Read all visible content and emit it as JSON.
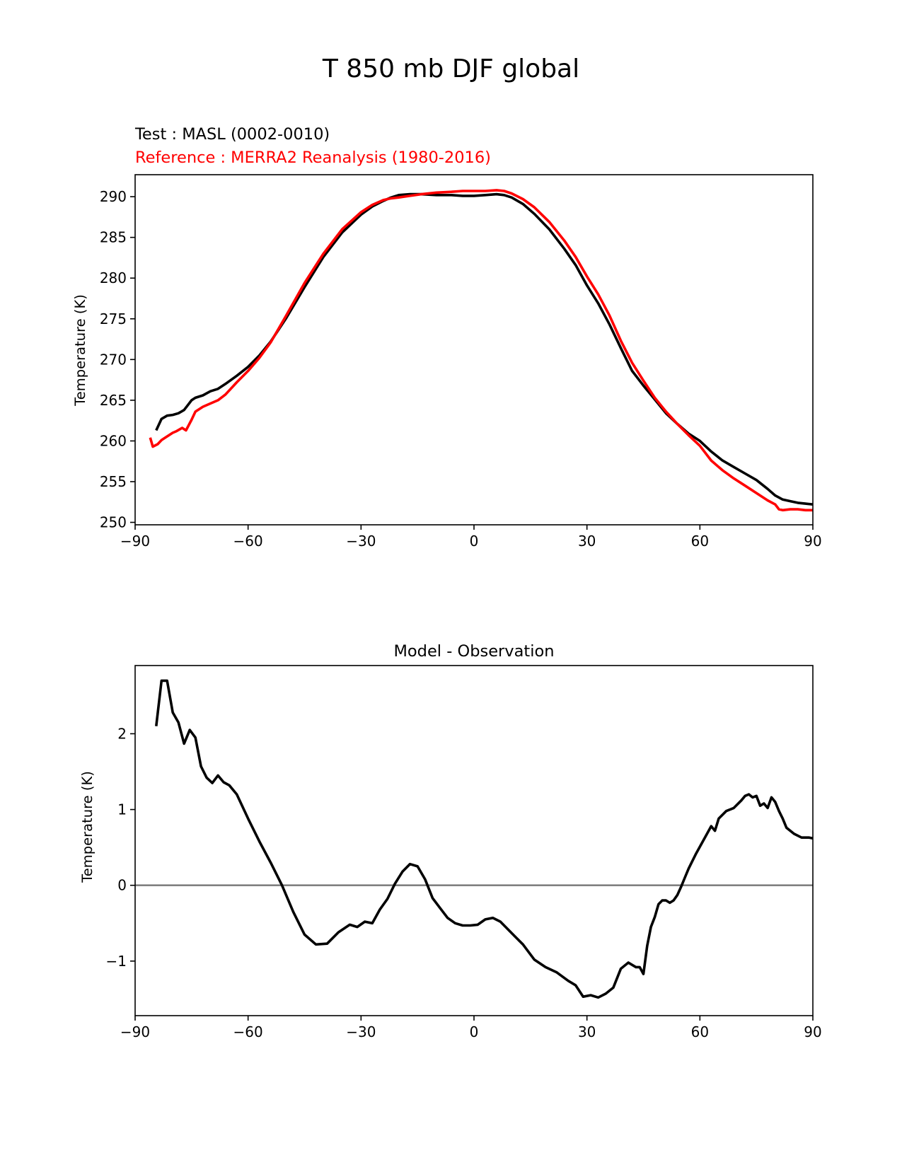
{
  "figure": {
    "suptitle": "T 850 mb DJF global"
  },
  "colors": {
    "test": "#000000",
    "reference": "#ff0000",
    "zero_line": "#808080"
  },
  "chart_data": [
    {
      "type": "line",
      "title_test": "Test : MASL (0002-0010)",
      "title_reference": "Reference : MERRA2 Reanalysis (1980-2016)",
      "xlabel": "",
      "ylabel": "Temperature (K)",
      "xlim": [
        -90,
        90
      ],
      "ylim": [
        249.7,
        292.7
      ],
      "xticks": [
        -90,
        -60,
        -30,
        0,
        30,
        60,
        90
      ],
      "xtick_labels": [
        "−90",
        "−60",
        "−30",
        "0",
        "30",
        "60",
        "90"
      ],
      "yticks": [
        250,
        255,
        260,
        265,
        270,
        275,
        280,
        285,
        290
      ],
      "ytick_labels": [
        "250",
        "255",
        "260",
        "265",
        "270",
        "275",
        "280",
        "285",
        "290"
      ],
      "grid": false,
      "series": [
        {
          "key": "test",
          "x": [
            -84.4,
            -83,
            -81.5,
            -80,
            -78.5,
            -77,
            -76,
            -75,
            -74,
            -72,
            -70,
            -68,
            -66,
            -63,
            -60,
            -57,
            -54,
            -50,
            -45,
            -40,
            -35,
            -30,
            -27,
            -24,
            -22,
            -20,
            -17,
            -14,
            -10,
            -6,
            -3,
            0,
            3,
            6,
            8,
            10,
            13,
            16,
            20,
            24,
            27,
            30,
            33,
            36,
            39,
            42,
            45,
            48,
            51,
            54,
            57,
            60,
            63,
            66,
            69,
            72,
            75,
            78,
            80,
            82,
            84,
            86,
            88,
            90
          ],
          "y": [
            261.3,
            262.7,
            263.1,
            263.2,
            263.4,
            263.8,
            264.4,
            265.0,
            265.3,
            265.6,
            266.1,
            266.4,
            267.0,
            268.0,
            269.1,
            270.5,
            272.2,
            275.0,
            278.9,
            282.6,
            285.6,
            287.8,
            288.8,
            289.5,
            289.9,
            290.2,
            290.3,
            290.3,
            290.2,
            290.2,
            290.1,
            290.1,
            290.2,
            290.3,
            290.2,
            289.9,
            289.1,
            287.9,
            286.0,
            283.6,
            281.6,
            279.1,
            276.9,
            274.3,
            271.4,
            268.6,
            266.8,
            265.1,
            263.4,
            262.1,
            260.9,
            260.0,
            258.7,
            257.6,
            256.8,
            256.0,
            255.2,
            254.1,
            253.3,
            252.8,
            252.6,
            252.4,
            252.3,
            252.2
          ]
        },
        {
          "key": "reference",
          "x": [
            -86,
            -85.3,
            -84,
            -83,
            -82,
            -80,
            -79,
            -77.5,
            -76.5,
            -75,
            -74,
            -72,
            -70,
            -68,
            -66,
            -63,
            -60,
            -57,
            -54,
            -50,
            -45,
            -40,
            -35,
            -30,
            -27,
            -24,
            -22,
            -20,
            -17,
            -14,
            -10,
            -6,
            -3,
            0,
            3,
            6,
            8,
            10,
            13,
            16,
            20,
            24,
            27,
            30,
            33,
            36,
            39,
            42,
            45,
            48,
            51,
            54,
            57,
            60,
            63,
            66,
            69,
            72,
            75,
            78,
            80,
            81,
            82,
            84,
            86,
            88,
            90
          ],
          "y": [
            260.4,
            259.3,
            259.6,
            260.1,
            260.4,
            261.0,
            261.2,
            261.6,
            261.3,
            262.6,
            263.6,
            264.2,
            264.6,
            265.0,
            265.7,
            267.2,
            268.6,
            270.2,
            272.1,
            275.3,
            279.4,
            283.0,
            286.0,
            288.1,
            289.0,
            289.6,
            289.8,
            289.9,
            290.1,
            290.3,
            290.5,
            290.6,
            290.7,
            290.7,
            290.7,
            290.8,
            290.7,
            290.4,
            289.7,
            288.7,
            286.9,
            284.6,
            282.6,
            280.2,
            278.0,
            275.4,
            272.3,
            269.6,
            267.4,
            265.3,
            263.6,
            262.1,
            260.7,
            259.4,
            257.6,
            256.4,
            255.4,
            254.5,
            253.6,
            252.7,
            252.2,
            251.6,
            251.5,
            251.6,
            251.6,
            251.5,
            251.5
          ]
        }
      ]
    },
    {
      "type": "line",
      "title": "Model - Observation",
      "xlabel": "",
      "ylabel": "Temperature (K)",
      "xlim": [
        -90,
        90
      ],
      "ylim": [
        -1.72,
        2.9
      ],
      "xticks": [
        -90,
        -60,
        -30,
        0,
        30,
        60,
        90
      ],
      "xtick_labels": [
        "−90",
        "−60",
        "−30",
        "0",
        "30",
        "60",
        "90"
      ],
      "yticks": [
        -1,
        0,
        1,
        2
      ],
      "ytick_labels": [
        "−1",
        "0",
        "1",
        "2"
      ],
      "grid": false,
      "zero_line": 0,
      "series": [
        {
          "key": "test",
          "x": [
            -84.4,
            -83,
            -81.5,
            -80,
            -78.5,
            -77,
            -75.5,
            -74,
            -72.5,
            -71,
            -69.5,
            -68,
            -66.5,
            -65,
            -63,
            -60,
            -57,
            -54,
            -51,
            -48,
            -45,
            -42,
            -39,
            -36,
            -33,
            -31,
            -29,
            -27,
            -25,
            -23,
            -21,
            -19,
            -17,
            -15,
            -13,
            -11,
            -9,
            -7,
            -5,
            -3,
            -1,
            1,
            3,
            5,
            7,
            9,
            11,
            13,
            16,
            19,
            22,
            25,
            27,
            29,
            31,
            33,
            35,
            37,
            39,
            41,
            43,
            44,
            45,
            46,
            47,
            48,
            49,
            50,
            51,
            52,
            53,
            54,
            55,
            56,
            57,
            59,
            61,
            63,
            64,
            65,
            67,
            69,
            71,
            72,
            73,
            74,
            75,
            76,
            77,
            78,
            79,
            80,
            81,
            82,
            83,
            85,
            87,
            89,
            90
          ],
          "y": [
            2.1,
            2.7,
            2.7,
            2.28,
            2.15,
            1.87,
            2.05,
            1.95,
            1.57,
            1.42,
            1.35,
            1.45,
            1.36,
            1.32,
            1.2,
            0.88,
            0.58,
            0.3,
            0.0,
            -0.35,
            -0.65,
            -0.78,
            -0.77,
            -0.62,
            -0.52,
            -0.55,
            -0.48,
            -0.5,
            -0.32,
            -0.18,
            0.02,
            0.18,
            0.28,
            0.25,
            0.08,
            -0.17,
            -0.3,
            -0.43,
            -0.5,
            -0.53,
            -0.53,
            -0.52,
            -0.45,
            -0.43,
            -0.48,
            -0.58,
            -0.68,
            -0.78,
            -0.98,
            -1.08,
            -1.15,
            -1.26,
            -1.32,
            -1.47,
            -1.45,
            -1.48,
            -1.43,
            -1.35,
            -1.1,
            -1.02,
            -1.08,
            -1.08,
            -1.17,
            -0.8,
            -0.55,
            -0.42,
            -0.25,
            -0.2,
            -0.2,
            -0.23,
            -0.2,
            -0.13,
            -0.02,
            0.1,
            0.22,
            0.42,
            0.6,
            0.78,
            0.72,
            0.88,
            0.98,
            1.02,
            1.12,
            1.18,
            1.2,
            1.16,
            1.18,
            1.05,
            1.08,
            1.02,
            1.16,
            1.1,
            0.98,
            0.88,
            0.76,
            0.68,
            0.63,
            0.63,
            0.62
          ]
        }
      ]
    }
  ]
}
